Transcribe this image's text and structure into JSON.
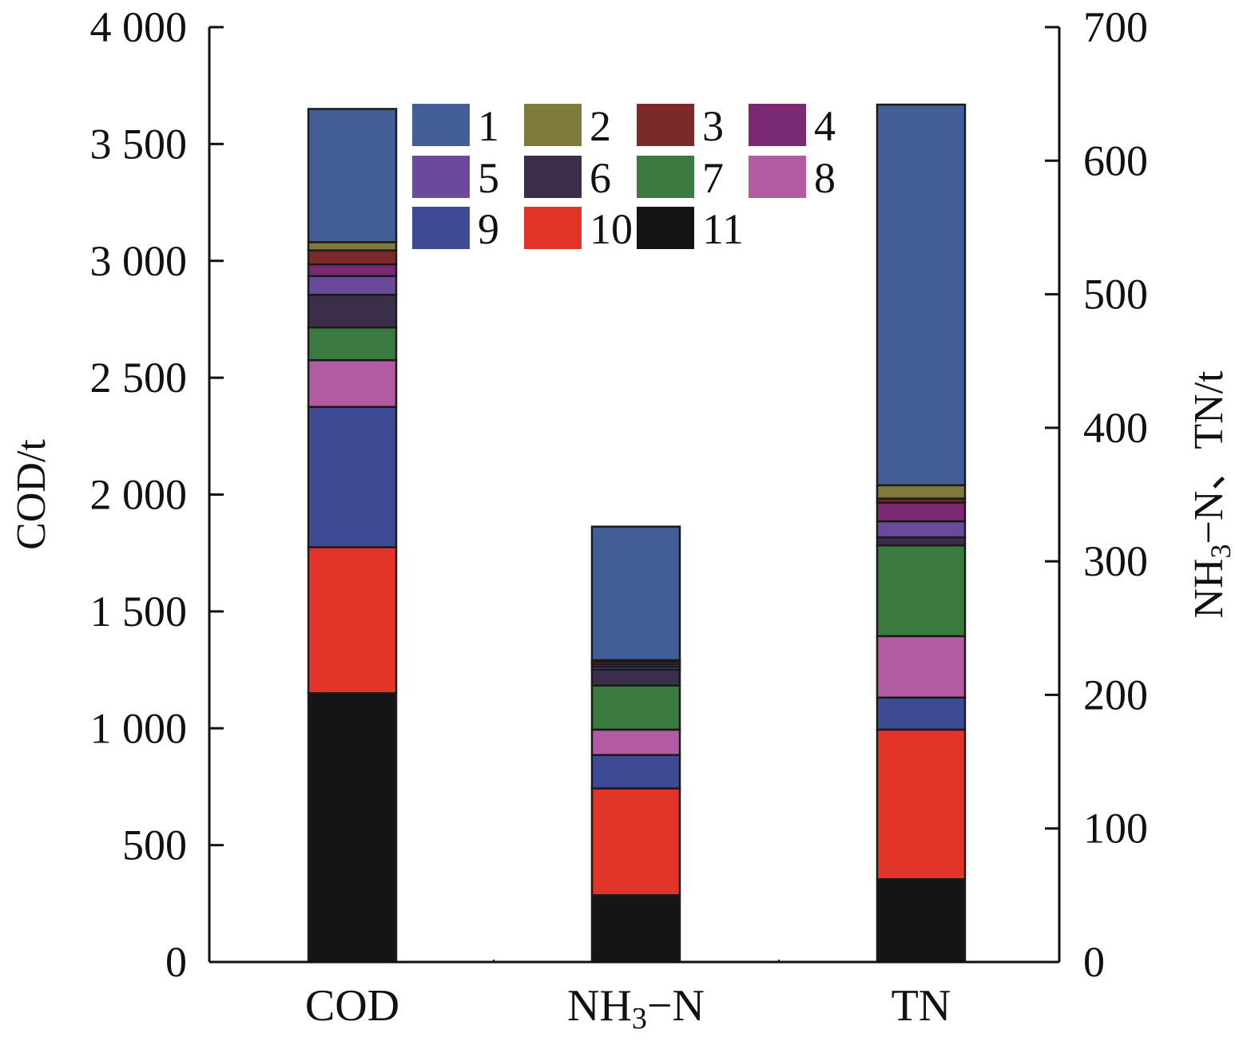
{
  "chart_data": {
    "type": "bar",
    "stacked": true,
    "categories": [
      "COD",
      "NH₃−N",
      "TN"
    ],
    "category_axis": [
      "left",
      "right",
      "right"
    ],
    "left_axis": {
      "label": "COD/t",
      "ylim": [
        0,
        4000
      ],
      "ticks": [
        "0",
        "500",
        "1 000",
        "1 500",
        "2 000",
        "2 500",
        "3 000",
        "3 500",
        "4 000"
      ]
    },
    "right_axis": {
      "label": "NH₃−N、TN/t",
      "ylim": [
        0,
        700
      ],
      "ticks": [
        "0",
        "100",
        "200",
        "300",
        "400",
        "500",
        "600",
        "700"
      ]
    },
    "series": [
      {
        "name": "11",
        "color": "#151515",
        "values": [
          1150,
          50,
          62
        ]
      },
      {
        "name": "10",
        "color": "#e23429",
        "values": [
          625,
          80,
          112
        ]
      },
      {
        "name": "9",
        "color": "#3e4a93",
        "values": [
          600,
          25,
          24
        ]
      },
      {
        "name": "8",
        "color": "#b25ba2",
        "values": [
          200,
          19,
          46
        ]
      },
      {
        "name": "7",
        "color": "#3a7a3e",
        "values": [
          140,
          33,
          68
        ]
      },
      {
        "name": "6",
        "color": "#3a2e4a",
        "values": [
          140,
          12,
          6
        ]
      },
      {
        "name": "5",
        "color": "#6a4a9a",
        "values": [
          80,
          2,
          12
        ]
      },
      {
        "name": "4",
        "color": "#7a2a72",
        "values": [
          50,
          2,
          14
        ]
      },
      {
        "name": "3",
        "color": "#7a2a28",
        "values": [
          60,
          2,
          3
        ]
      },
      {
        "name": "2",
        "color": "#7e7a3c",
        "values": [
          35,
          1,
          10
        ]
      },
      {
        "name": "1",
        "color": "#435e96",
        "values": [
          570,
          100,
          285
        ]
      }
    ],
    "legend_order": [
      "1",
      "2",
      "3",
      "4",
      "5",
      "6",
      "7",
      "8",
      "9",
      "10",
      "11"
    ],
    "legend_position": "top-center",
    "grid": false
  }
}
